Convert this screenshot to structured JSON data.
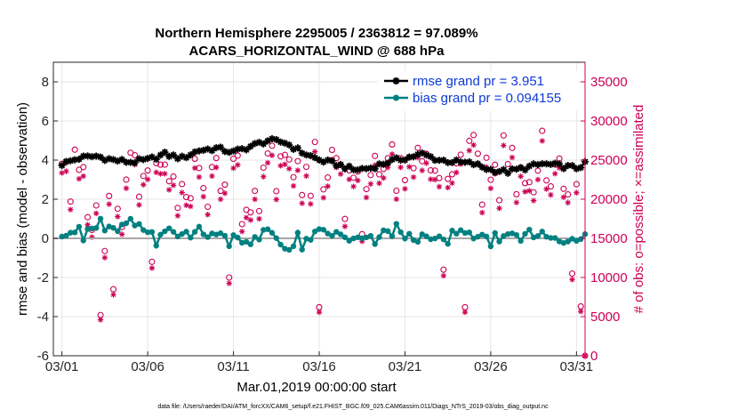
{
  "chart_data": {
    "type": "line",
    "title_line1": "Northern Hemisphere 2295005 / 2363812 = 97.089%",
    "title_line2": "ACARS_HORIZONTAL_WIND @ 688 hPa",
    "xlabel": "Mar.01,2019 00:00:00 start",
    "ylabel_left": "rmse and bias (model - observation)",
    "ylabel_right": "# of obs: o=possible; ×=assimilated",
    "footnote": "data file: /Users/raeder/DAI/ATM_forcXX/CAM6_setup/f.e21.FHIST_BGC.f09_025.CAM6assim.011/Diags_NTrS_2019-03/obs_diag_output.nc",
    "xlim": [
      0.5,
      31.5
    ],
    "ylim_left": [
      -6,
      9
    ],
    "ylim_right": [
      0,
      37500
    ],
    "x_ticks": [
      1,
      6,
      11,
      16,
      21,
      26,
      31
    ],
    "x_tick_labels": [
      "03/01",
      "03/06",
      "03/11",
      "03/16",
      "03/21",
      "03/26",
      "03/31"
    ],
    "y_left_ticks": [
      -6,
      -4,
      -2,
      0,
      2,
      4,
      6,
      8
    ],
    "y_left_tick_labels": [
      "-6",
      "-4",
      "-2",
      "0",
      "2",
      "4",
      "6",
      "8"
    ],
    "y_right_ticks": [
      0,
      5000,
      10000,
      15000,
      20000,
      25000,
      30000,
      35000
    ],
    "y_right_tick_labels": [
      "0",
      "5000",
      "10000",
      "15000",
      "20000",
      "25000",
      "30000",
      "35000"
    ],
    "legend_position": "top-right",
    "series": [
      {
        "name": "rmse grand pr = 3.951",
        "color": "#000000",
        "marker": "star",
        "knots_x": [
          1,
          2,
          3,
          4,
          5,
          6,
          7,
          8,
          9,
          10,
          11,
          12,
          13,
          14,
          15,
          16,
          17,
          18,
          19,
          20,
          21,
          22,
          23,
          24,
          25,
          26,
          27,
          28,
          29,
          30,
          31,
          31.5
        ],
        "knots_y": [
          3.8,
          4.1,
          4.2,
          4.0,
          3.9,
          4.0,
          4.3,
          4.1,
          4.5,
          4.6,
          4.4,
          4.7,
          5.0,
          4.9,
          4.4,
          4.0,
          3.8,
          3.5,
          3.6,
          3.9,
          4.1,
          4.3,
          4.0,
          3.9,
          3.8,
          3.5,
          3.4,
          3.6,
          3.8,
          3.7,
          3.6,
          3.8
        ]
      },
      {
        "name": "bias grand pr = 0.094155",
        "color": "#008080",
        "marker": "dot",
        "knots_x": [
          1,
          2,
          3,
          4,
          5,
          6,
          7,
          8,
          9,
          10,
          11,
          12,
          13,
          14,
          15,
          16,
          17,
          18,
          19,
          20,
          21,
          22,
          23,
          24,
          25,
          26,
          27,
          28,
          29,
          30,
          31,
          31.5
        ],
        "knots_y": [
          0.3,
          0.4,
          0.5,
          0.4,
          0.8,
          0.3,
          0.4,
          0.2,
          0.3,
          0.1,
          0.2,
          -0.3,
          0.4,
          -0.5,
          -0.2,
          0.3,
          0.2,
          -0.1,
          0.0,
          0.3,
          0.1,
          0.0,
          -0.1,
          0.4,
          0.2,
          -0.2,
          0.0,
          0.3,
          0.2,
          0.0,
          -0.2,
          0.1
        ]
      },
      {
        "name": "# obs possible",
        "color": "#cc0055",
        "marker": "circle",
        "axis": "right",
        "knots_x": [
          1,
          2,
          3,
          4,
          5,
          6,
          7,
          8,
          9,
          10,
          11,
          12,
          13,
          14,
          15,
          16,
          17,
          18,
          19,
          20,
          21,
          22,
          23,
          24,
          25,
          26,
          27,
          28,
          29,
          30,
          31,
          31.5
        ],
        "knots_y": [
          26000,
          23000,
          17000,
          19500,
          26000,
          26000,
          26500,
          20000,
          24000,
          22500,
          26000,
          20000,
          26500,
          25000,
          23000,
          24500,
          23000,
          21000,
          23000,
          25000,
          25500,
          26000,
          23000,
          24000,
          25000,
          25500,
          25500,
          23000,
          26000,
          24000,
          23000,
          26000
        ],
        "dips": [
          {
            "x": 3.3,
            "y": 5200
          },
          {
            "x": 4.1,
            "y": 8500
          },
          {
            "x": 6.2,
            "y": 12000
          },
          {
            "x": 10.7,
            "y": 10000
          },
          {
            "x": 16.0,
            "y": 6200
          },
          {
            "x": 23.3,
            "y": 11000
          },
          {
            "x": 24.6,
            "y": 6200
          },
          {
            "x": 30.8,
            "y": 10500
          },
          {
            "x": 31.2,
            "y": 6300
          }
        ],
        "end_point": {
          "x": 31.5,
          "y": 0
        }
      },
      {
        "name": "# obs assimilated",
        "color": "#cc0055",
        "marker": "asterisk",
        "axis": "right",
        "ratio_to_possible": 0.971
      }
    ]
  }
}
